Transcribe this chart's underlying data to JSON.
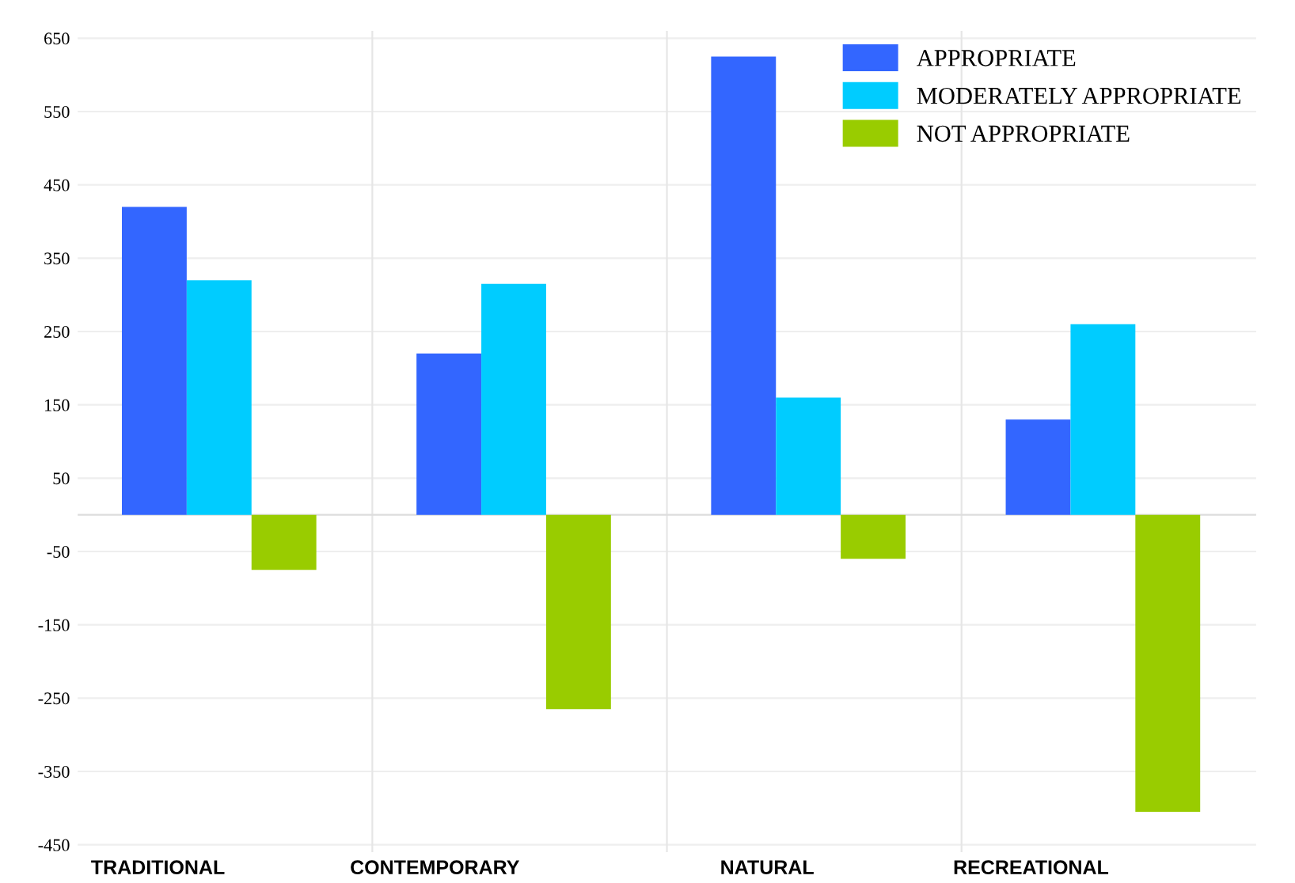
{
  "chart_data": {
    "type": "bar",
    "categories": [
      "TRADITIONAL",
      "CONTEMPORARY",
      "NATURAL",
      "RECREATIONAL"
    ],
    "series": [
      {
        "name": "APPROPRIATE",
        "color": "#3366ff",
        "values": [
          420,
          220,
          625,
          130
        ]
      },
      {
        "name": "MODERATELY APPROPRIATE",
        "color": "#00ccff",
        "values": [
          320,
          315,
          160,
          260
        ]
      },
      {
        "name": "NOT APPROPRIATE",
        "color": "#99cc00",
        "values": [
          -75,
          -265,
          -60,
          -405
        ]
      }
    ],
    "ylim": [
      -460,
      660
    ],
    "yticks": [
      650,
      550,
      450,
      350,
      250,
      150,
      50,
      -50,
      -150,
      -250,
      -350,
      -450
    ],
    "grid": true,
    "legend": "top right"
  }
}
